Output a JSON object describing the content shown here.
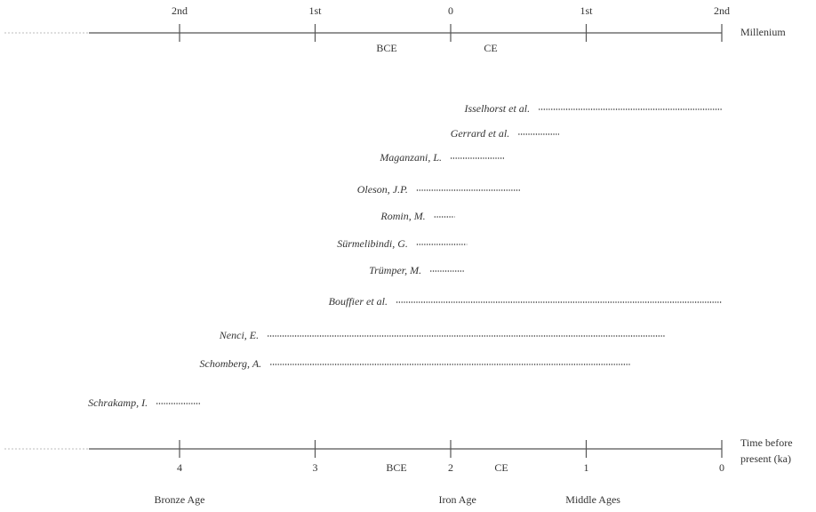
{
  "chart_data": {
    "type": "timeline",
    "top_axis": {
      "unit_label": "Millenium",
      "ticks": [
        {
          "at": 4,
          "label": "2nd"
        },
        {
          "at": 3,
          "label": "1st"
        },
        {
          "at": 2,
          "label": "0"
        },
        {
          "at": 1,
          "label": "1st"
        },
        {
          "at": 0,
          "label": "2nd"
        }
      ],
      "era_labels": {
        "before": "BCE",
        "after": "CE"
      }
    },
    "bottom_axis": {
      "unit_label_line1": "Time before",
      "unit_label_line2": "present (ka)",
      "ticks": [
        {
          "at": 4,
          "label": "4"
        },
        {
          "at": 3,
          "label": "3"
        },
        {
          "at": 2,
          "label": "2"
        },
        {
          "at": 1,
          "label": "1"
        },
        {
          "at": 0,
          "label": "0"
        }
      ],
      "era_labels": {
        "before": "BCE",
        "after": "CE"
      }
    },
    "x_range_ka": [
      4.66,
      0
    ],
    "periods": [
      {
        "label": "Bronze Age",
        "at": 4.0
      },
      {
        "label": "Iron Age",
        "at": 1.95
      },
      {
        "label": "Middle Ages",
        "at": 0.95
      }
    ],
    "ranges": [
      {
        "label": "Isselhorst et al.",
        "start": 1.35,
        "end": 0.0
      },
      {
        "label": "Gerrard et al.",
        "start": 1.5,
        "end": 1.2
      },
      {
        "label": "Maganzani, L.",
        "start": 2.0,
        "end": 1.6
      },
      {
        "label": "Oleson, J.P.",
        "start": 2.25,
        "end": 1.48
      },
      {
        "label": "Romin, M.",
        "start": 2.12,
        "end": 1.97
      },
      {
        "label": "Sürmelibindi, G.",
        "start": 2.25,
        "end": 1.88
      },
      {
        "label": "Trümper, M.",
        "start": 2.15,
        "end": 1.9
      },
      {
        "label": "Bouffier et al.",
        "start": 2.4,
        "end": 0.0
      },
      {
        "label": "Nenci, E.",
        "start": 3.35,
        "end": 0.42
      },
      {
        "label": "Schomberg, A.",
        "start": 3.33,
        "end": 0.67
      },
      {
        "label": "Schrakamp, I.",
        "start": 4.17,
        "end": 3.85
      }
    ]
  }
}
